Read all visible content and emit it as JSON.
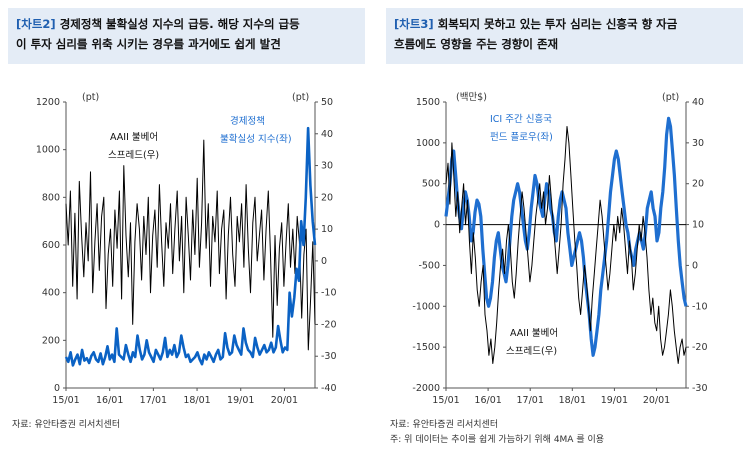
{
  "charts": [
    {
      "tag": "[차트2]",
      "title_line1": "경제정책 불확실성 지수의 급등. 해당 지수의 급등",
      "title_line2": "이 투자 심리를 위축 시키는 경우를 과거에도 쉽게 발견",
      "left_unit": "(pt)",
      "right_unit": "(pt)",
      "source": "자료: 유안타증권 리서치센터",
      "label_black_1": "AAII 불베어",
      "label_black_2": "스프레드(우)",
      "label_blue_1": "경제정책",
      "label_blue_2": "불확실성 지수(좌)"
    },
    {
      "tag": "[차트3]",
      "title_line1": "회복되지 못하고 있는 투자 심리는 신흥국 향 자금",
      "title_line2": "흐름에도 영향을 주는 경향이 존재",
      "left_unit": "(백만$)",
      "right_unit": "(pt)",
      "source": "자료: 유안타증권 리서치센터",
      "note": "주: 위 데이터는 추이를 쉽게 가늠하기 위해 4MA 를 이용",
      "label_black_1": "AAII 불베어",
      "label_black_2": "스프레드(우)",
      "label_blue_1": "ICI 주간 신흥국",
      "label_blue_2": "펀드 플로우(좌)"
    }
  ],
  "chart_data": [
    {
      "type": "line",
      "x_ticks": [
        "15/01",
        "16/01",
        "17/01",
        "18/01",
        "19/01",
        "20/01"
      ],
      "ylim_left": [
        0,
        1200
      ],
      "yticks_left": [
        0,
        200,
        400,
        600,
        800,
        1000,
        1200
      ],
      "ylim_right": [
        -40,
        50
      ],
      "yticks_right": [
        -40,
        -30,
        -20,
        -10,
        0,
        10,
        20,
        30,
        40,
        50
      ],
      "series": [
        {
          "name": "AAII 불베어 스프레드(우)",
          "axis": "right",
          "color": "#000000",
          "values": [
            18,
            5,
            22,
            -8,
            15,
            -12,
            25,
            8,
            -5,
            12,
            0,
            28,
            -10,
            6,
            18,
            -3,
            14,
            20,
            -15,
            2,
            10,
            -8,
            16,
            4,
            22,
            -12,
            30,
            8,
            -5,
            12,
            -20,
            6,
            18,
            10,
            -6,
            14,
            2,
            20,
            -10,
            8,
            16,
            -2,
            24,
            6,
            -8,
            12,
            4,
            18,
            -4,
            10,
            22,
            0,
            14,
            -10,
            20,
            8,
            -6,
            16,
            2,
            26,
            -2,
            12,
            38,
            4,
            18,
            -8,
            14,
            6,
            22,
            -4,
            10,
            16,
            -12,
            8,
            20,
            2,
            -8,
            14,
            6,
            18,
            -2,
            24,
            4,
            -10,
            12,
            20,
            0,
            8,
            16,
            -6,
            10,
            22,
            2,
            -24,
            8,
            -14,
            4,
            12,
            -8,
            6,
            18,
            -2,
            10,
            -4,
            14,
            6,
            -18,
            2,
            10,
            -28,
            -12,
            6,
            -20
          ]
        },
        {
          "name": "경제정책 불확실성 지수(좌)",
          "axis": "left",
          "color": "#0b62c4",
          "values": [
            130,
            110,
            150,
            95,
            120,
            140,
            100,
            160,
            115,
            125,
            105,
            135,
            150,
            120,
            110,
            145,
            100,
            130,
            175,
            120,
            140,
            110,
            250,
            140,
            130,
            120,
            180,
            140,
            110,
            150,
            130,
            220,
            160,
            120,
            140,
            200,
            150,
            130,
            110,
            160,
            140,
            120,
            150,
            210,
            130,
            160,
            140,
            180,
            130,
            150,
            220,
            170,
            130,
            140,
            110,
            120,
            130,
            150,
            120,
            100,
            140,
            120,
            150,
            130,
            110,
            140,
            160,
            120,
            130,
            230,
            170,
            140,
            150,
            220,
            180,
            160,
            140,
            250,
            190,
            160,
            150,
            130,
            210,
            170,
            140,
            160,
            180,
            150,
            160,
            190,
            150,
            170,
            260,
            200,
            150,
            170,
            160,
            400,
            300,
            380,
            500,
            450,
            700,
            600,
            800,
            1090,
            850,
            700,
            600
          ]
        }
      ]
    },
    {
      "type": "line",
      "x_ticks": [
        "15/01",
        "16/01",
        "17/01",
        "18/01",
        "19/01",
        "20/01"
      ],
      "ylim_left": [
        -2000,
        1500
      ],
      "yticks_left": [
        -2000,
        -1500,
        -1000,
        -500,
        0,
        500,
        1000,
        1500
      ],
      "ylim_right": [
        -30,
        40
      ],
      "yticks_right": [
        -30,
        -20,
        -10,
        0,
        10,
        20,
        30,
        40
      ],
      "series": [
        {
          "name": "ICI 주간 신흥국 펀드 플로우(좌)",
          "axis": "left",
          "color": "#1f6fd0",
          "values": [
            100,
            300,
            500,
            800,
            900,
            600,
            300,
            100,
            -50,
            200,
            400,
            300,
            100,
            -200,
            -100,
            150,
            300,
            250,
            100,
            -300,
            -600,
            -900,
            -1000,
            -900,
            -700,
            -400,
            -200,
            -100,
            -300,
            -500,
            -600,
            -700,
            -500,
            -200,
            100,
            300,
            400,
            500,
            400,
            200,
            0,
            -200,
            -300,
            -100,
            200,
            400,
            600,
            500,
            300,
            200,
            100,
            300,
            500,
            400,
            200,
            100,
            -100,
            -200,
            100,
            300,
            400,
            300,
            200,
            -100,
            -300,
            -500,
            -400,
            -300,
            -200,
            -100,
            -200,
            -400,
            -700,
            -900,
            -1100,
            -1400,
            -1600,
            -1500,
            -1300,
            -1100,
            -800,
            -600,
            -400,
            -200,
            100,
            400,
            600,
            800,
            900,
            800,
            600,
            400,
            200,
            0,
            -100,
            -300,
            -400,
            -500,
            -300,
            -200,
            -100,
            -200,
            -300,
            -100,
            200,
            300,
            400,
            200,
            100,
            -200,
            -100,
            200,
            400,
            700,
            1100,
            1300,
            1200,
            900,
            600,
            200,
            -200,
            -500,
            -700,
            -900,
            -1000
          ]
        },
        {
          "name": "AAII 불베어 스프레드(우)",
          "axis": "right",
          "color": "#000000",
          "values": [
            20,
            25,
            15,
            30,
            22,
            12,
            18,
            8,
            14,
            20,
            10,
            16,
            6,
            -2,
            8,
            2,
            -6,
            -10,
            -4,
            0,
            -12,
            -16,
            -22,
            -18,
            -24,
            -20,
            -14,
            -6,
            0,
            4,
            -2,
            6,
            10,
            4,
            -4,
            -8,
            -2,
            6,
            12,
            18,
            14,
            8,
            2,
            -4,
            0,
            6,
            12,
            16,
            20,
            14,
            18,
            10,
            14,
            22,
            16,
            10,
            4,
            -2,
            4,
            10,
            20,
            26,
            34,
            30,
            22,
            14,
            6,
            0,
            -8,
            -12,
            -6,
            0,
            -4,
            -10,
            -16,
            -8,
            -2,
            4,
            10,
            16,
            12,
            6,
            0,
            -6,
            -2,
            4,
            10,
            6,
            12,
            8,
            14,
            10,
            4,
            -2,
            6,
            2,
            -6,
            -2,
            4,
            10,
            6,
            12,
            8,
            2,
            -6,
            -12,
            -8,
            -14,
            -16,
            -10,
            -18,
            -22,
            -20,
            -16,
            -12,
            -6,
            -10,
            -16,
            -20,
            -24,
            -20,
            -18,
            -22,
            -20
          ]
        }
      ]
    }
  ]
}
